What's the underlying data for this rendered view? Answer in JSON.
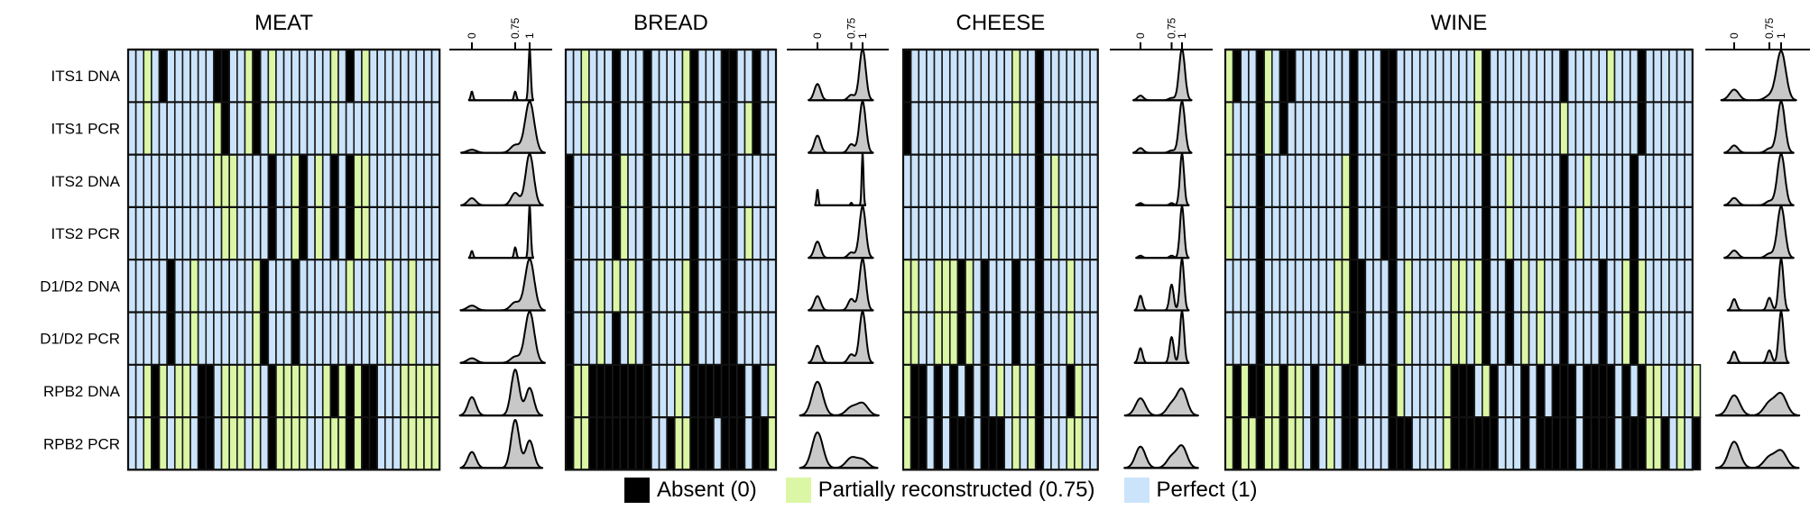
{
  "chart_data": {
    "type": "heatmap",
    "title": "",
    "row_labels": [
      "ITS1 DNA",
      "ITS1 PCR",
      "ITS2 DNA",
      "ITS2 PCR",
      "D1/D2 DNA",
      "D1/D2 PCR",
      "RPB2 DNA",
      "RPB2 PCR"
    ],
    "value_scale": {
      "K": {
        "value": 0,
        "label": "Absent (0)",
        "color": "#000000"
      },
      "G": {
        "value": 0.75,
        "label": "Partially reconstructed (0.75)",
        "color": "#dbf7a6"
      },
      "B": {
        "value": 1,
        "label": "Perfect (1)",
        "color": "#cce4fb"
      }
    },
    "legend": [
      {
        "key": "K",
        "label": "Absent (0)",
        "color": "#000000"
      },
      {
        "key": "G",
        "label": "Partially reconstructed (0.75)",
        "color": "#dbf7a6"
      },
      {
        "key": "B",
        "label": "Perfect (1)",
        "color": "#cce4fb"
      }
    ],
    "legend_placement": "bottom-center",
    "density_axis": {
      "ticks": [
        0,
        0.75,
        1
      ],
      "tick_labels": [
        "0",
        "0.75",
        "1"
      ],
      "xlim": [
        -0.4,
        1.4
      ]
    },
    "density_fill": "#c8c8c8",
    "panels": [
      {
        "name": "MEAT",
        "rows": [
          "BBGBKBBBBBBKKBBGKBGBBBBBBBGBKBGBBBBBBBBB",
          "BBGBBBBBBBBGKBBGKBGBBBBBBBGBBBBBBBBBBBBB",
          "BBBBBBBBBBBGGGBBBBKBBGKBGBKBKGGBBBBBBBBB",
          "BBBBBBBBBBBBGGBBBBKBBGKBGBKBKGGBBBBBBBBB",
          "BBBBBKBBGBBBBBBBGKBBBKBBBBBBGBBBBGBBGBBB",
          "BBBBBKBBGBBBBBBBGKBBBKBBBBBBBBBBBGBBGBBB",
          "BBGKGBGGBKKBGGGBGBKGGGGBBGKGKGKKBBBGGGGG",
          "BBGKGBGGBKKBGGGBGBKGGGGBBGGGKGKKBBBGGGGG"
        ],
        "density_bandwidths": [
          0.02,
          0.08,
          0.07,
          0.02,
          0.08,
          0.08,
          0.07,
          0.07
        ]
      },
      {
        "name": "BREAD",
        "rows": [
          "BBGBBBKBBBKBBBBGKBBBKKBBKBB",
          "BBGBBBKBBBKBBBBGKBBBKKBGKBB",
          "KBBBBBKGBBKBBBBBKBBBKKBBBBB",
          "KBBBBBKGBBKBBBBBKBBBKKBGBBB",
          "KBBBGBGBGBKBBBBGKBBBKKBBBBB",
          "KBBBGBKBGBKBBBBGKBBBKKBBBBB",
          "KGGKKKKKKKKBBBGBKKKKKKKBKBG",
          "KGGKKKKKKKKBBKGGKKKBKKKBKKG"
        ],
        "density_bandwidths": [
          0.07,
          0.07,
          0.02,
          0.07,
          0.07,
          0.07,
          0.12,
          0.12
        ]
      },
      {
        "name": "CHEESE",
        "rows": [
          "KBBBBBBBBBBBBBGBBKBBBBBBB",
          "KBBBBBBBBBBBBBGBBKBBBBBBB",
          "BBBBBBBBBBBBBBBBBKBGBBBBB",
          "BBBBBBBBBBBBBBBBBKBGBBBBB",
          "GGBBGGGKGBKBBBKBBKBBBGBBB",
          "GGBBGGGKGBKBBBKBBKBBBGBBB",
          "GKKBKBKBKBKBGBGBGKBBBKGBB",
          "GKKBKBKKKBKKKBGBGKBBBGGBB"
        ],
        "density_bandwidths": [
          0.07,
          0.07,
          0.05,
          0.05,
          0.05,
          0.05,
          0.12,
          0.12
        ]
      },
      {
        "name": "WINE",
        "rows": [
          "GKBBKGBKKBBBBBBBKBBBKKBBBBBBBBBBGKBBBBBBBBBKBBBBBGBBBKBBBBBB",
          "GBBBKGBKBBBBBBBBKBBBKKBBBBBBBBBBGKBBBBBBBBBGBBBBBBBBBKBBBBBB",
          "GBBBKBBBBBBBBBBGKBBBKKBBBBBBBBBBBKBBGBBBBBBKBBGBBBBBKBBBBBBB",
          "GBBBKBBBBBBBBBBGKBBBKKBBBBBBBBBBBKBBGBBBBBBKBGBBBBBBKBBBBBBB",
          "BBBBKBBBBBBBBBGGKKBBBKBGBBBBBGGBGKBBKBGBGBBKBBBBKBBGKGBBBBBB",
          "BBBBKBBBBBBBBBGGKKBBBKBGBBBBBGGBGKBBKBGBGBBKBBBBKBBGKGBBBBBB",
          "GKGKKGGKGGBKBGBKKBBBBKGBBBBBGKKKBGKBBBKBKBKKKBKKKKBKBKGGBBGBG",
          "GKGGKGGKGGBKBGBKKBBBBKKKBBBBGKKKKKKBBBKBKKKKKBKKKKBKKKGGKBGBK"
        ],
        "density_bandwidths": [
          0.1,
          0.08,
          0.08,
          0.08,
          0.05,
          0.05,
          0.12,
          0.12
        ]
      }
    ]
  }
}
